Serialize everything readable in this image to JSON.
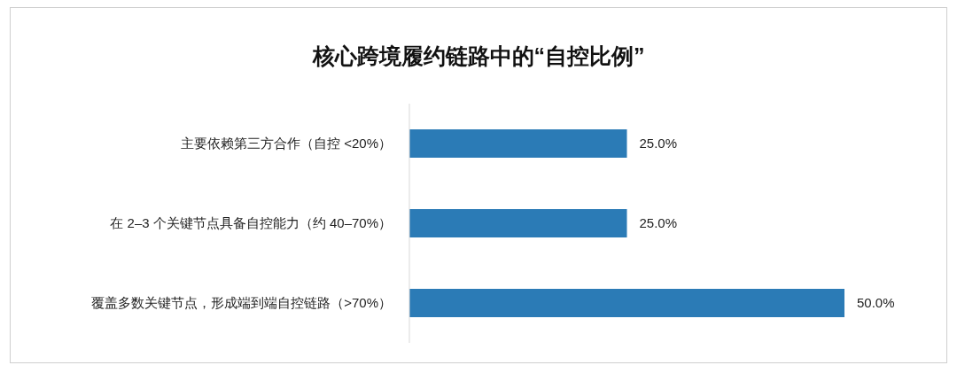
{
  "chart_data": {
    "type": "bar",
    "orientation": "horizontal",
    "title": "核心跨境履约链路中的“自控比例”",
    "categories": [
      "主要依赖第三方合作（自控 <20%）",
      "在 2–3 个关键节点具备自控能力（约 40–70%）",
      "覆盖多数关键节点，形成端到端自控链路（>70%）"
    ],
    "values": [
      25,
      25,
      50
    ],
    "value_labels": [
      "25.0%",
      "25.0%",
      "50.0%"
    ],
    "color": "#2b7bb6",
    "grid": false
  }
}
